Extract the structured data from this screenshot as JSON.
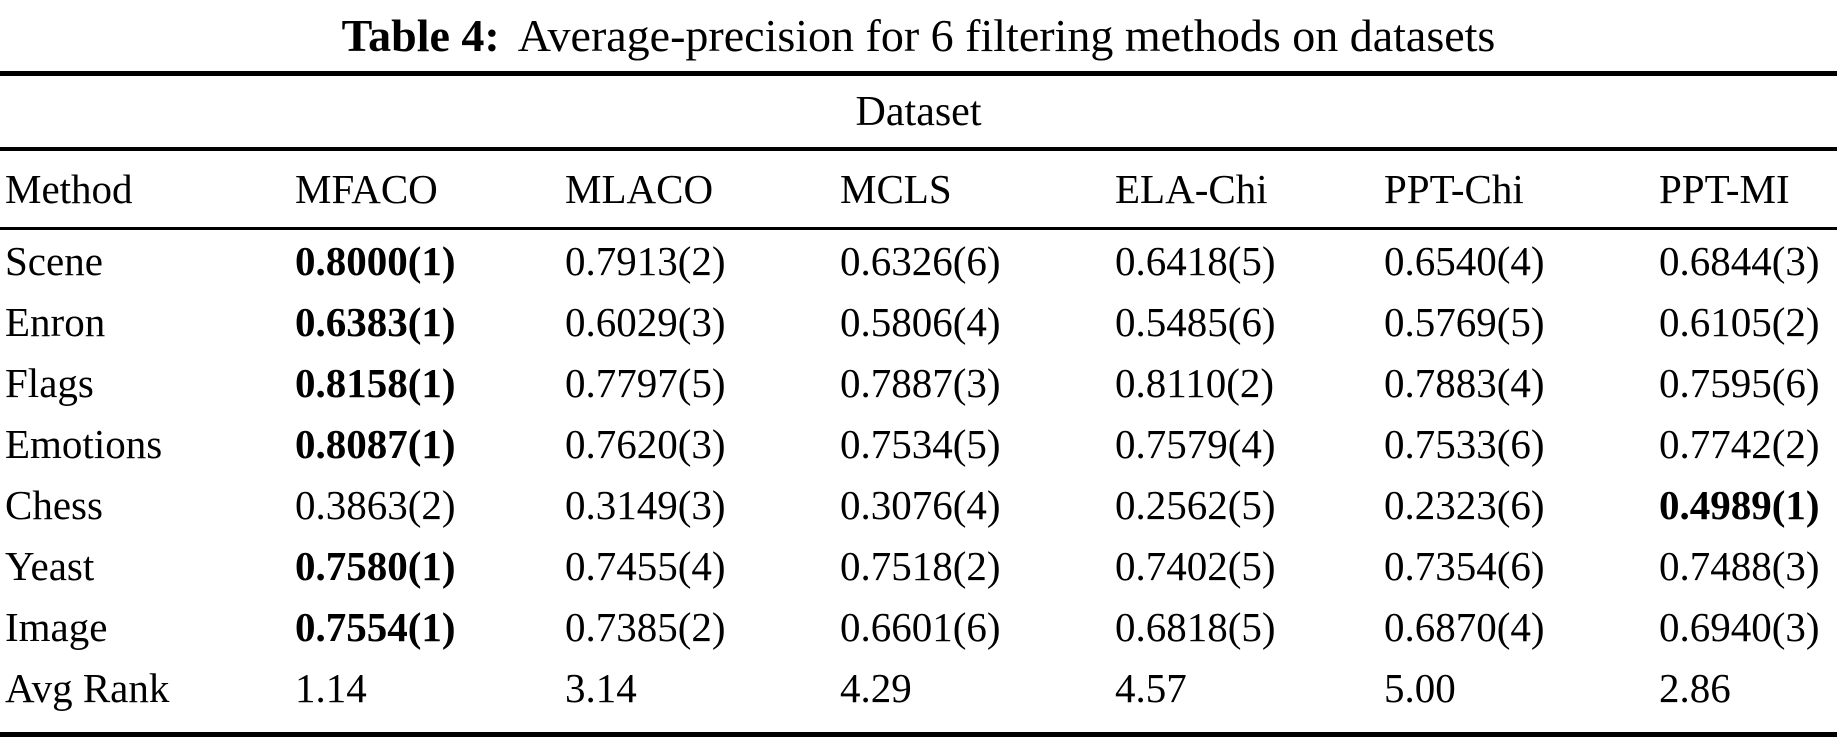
{
  "caption": {
    "label": "Table 4:",
    "text": "Average-precision for 6 filtering methods on datasets"
  },
  "colors": {
    "text": "#000000",
    "background": "#ffffff",
    "rule": "#000000"
  },
  "table": {
    "group_header": "Dataset",
    "columns": [
      "Method",
      "MFACO",
      "MLACO",
      "MCLS",
      "ELA-Chi",
      "PPT-Chi",
      "PPT-MI"
    ],
    "rows": [
      {
        "method": "Scene",
        "cells": [
          {
            "text": "0.8000(1)",
            "bold": true
          },
          {
            "text": "0.7913(2)",
            "bold": false
          },
          {
            "text": "0.6326(6)",
            "bold": false
          },
          {
            "text": "0.6418(5)",
            "bold": false
          },
          {
            "text": "0.6540(4)",
            "bold": false
          },
          {
            "text": "0.6844(3)",
            "bold": false
          }
        ]
      },
      {
        "method": "Enron",
        "cells": [
          {
            "text": "0.6383(1)",
            "bold": true
          },
          {
            "text": "0.6029(3)",
            "bold": false
          },
          {
            "text": "0.5806(4)",
            "bold": false
          },
          {
            "text": "0.5485(6)",
            "bold": false
          },
          {
            "text": "0.5769(5)",
            "bold": false
          },
          {
            "text": "0.6105(2)",
            "bold": false
          }
        ]
      },
      {
        "method": "Flags",
        "cells": [
          {
            "text": "0.8158(1)",
            "bold": true
          },
          {
            "text": "0.7797(5)",
            "bold": false
          },
          {
            "text": "0.7887(3)",
            "bold": false
          },
          {
            "text": "0.8110(2)",
            "bold": false
          },
          {
            "text": "0.7883(4)",
            "bold": false
          },
          {
            "text": "0.7595(6)",
            "bold": false
          }
        ]
      },
      {
        "method": "Emotions",
        "cells": [
          {
            "text": "0.8087(1)",
            "bold": true
          },
          {
            "text": "0.7620(3)",
            "bold": false
          },
          {
            "text": "0.7534(5)",
            "bold": false
          },
          {
            "text": "0.7579(4)",
            "bold": false
          },
          {
            "text": "0.7533(6)",
            "bold": false
          },
          {
            "text": "0.7742(2)",
            "bold": false
          }
        ]
      },
      {
        "method": "Chess",
        "cells": [
          {
            "text": "0.3863(2)",
            "bold": false
          },
          {
            "text": "0.3149(3)",
            "bold": false
          },
          {
            "text": "0.3076(4)",
            "bold": false
          },
          {
            "text": "0.2562(5)",
            "bold": false
          },
          {
            "text": "0.2323(6)",
            "bold": false
          },
          {
            "text": "0.4989(1)",
            "bold": true
          }
        ]
      },
      {
        "method": "Yeast",
        "cells": [
          {
            "text": "0.7580(1)",
            "bold": true
          },
          {
            "text": "0.7455(4)",
            "bold": false
          },
          {
            "text": "0.7518(2)",
            "bold": false
          },
          {
            "text": "0.7402(5)",
            "bold": false
          },
          {
            "text": "0.7354(6)",
            "bold": false
          },
          {
            "text": "0.7488(3)",
            "bold": false
          }
        ]
      },
      {
        "method": "Image",
        "cells": [
          {
            "text": "0.7554(1)",
            "bold": true
          },
          {
            "text": "0.7385(2)",
            "bold": false
          },
          {
            "text": "0.6601(6)",
            "bold": false
          },
          {
            "text": "0.6818(5)",
            "bold": false
          },
          {
            "text": "0.6870(4)",
            "bold": false
          },
          {
            "text": "0.6940(3)",
            "bold": false
          }
        ]
      },
      {
        "method": "Avg Rank",
        "cells": [
          {
            "text": "1.14",
            "bold": false
          },
          {
            "text": "3.14",
            "bold": false
          },
          {
            "text": "4.29",
            "bold": false
          },
          {
            "text": "4.57",
            "bold": false
          },
          {
            "text": "5.00",
            "bold": false
          },
          {
            "text": "2.86",
            "bold": false
          }
        ]
      }
    ]
  }
}
